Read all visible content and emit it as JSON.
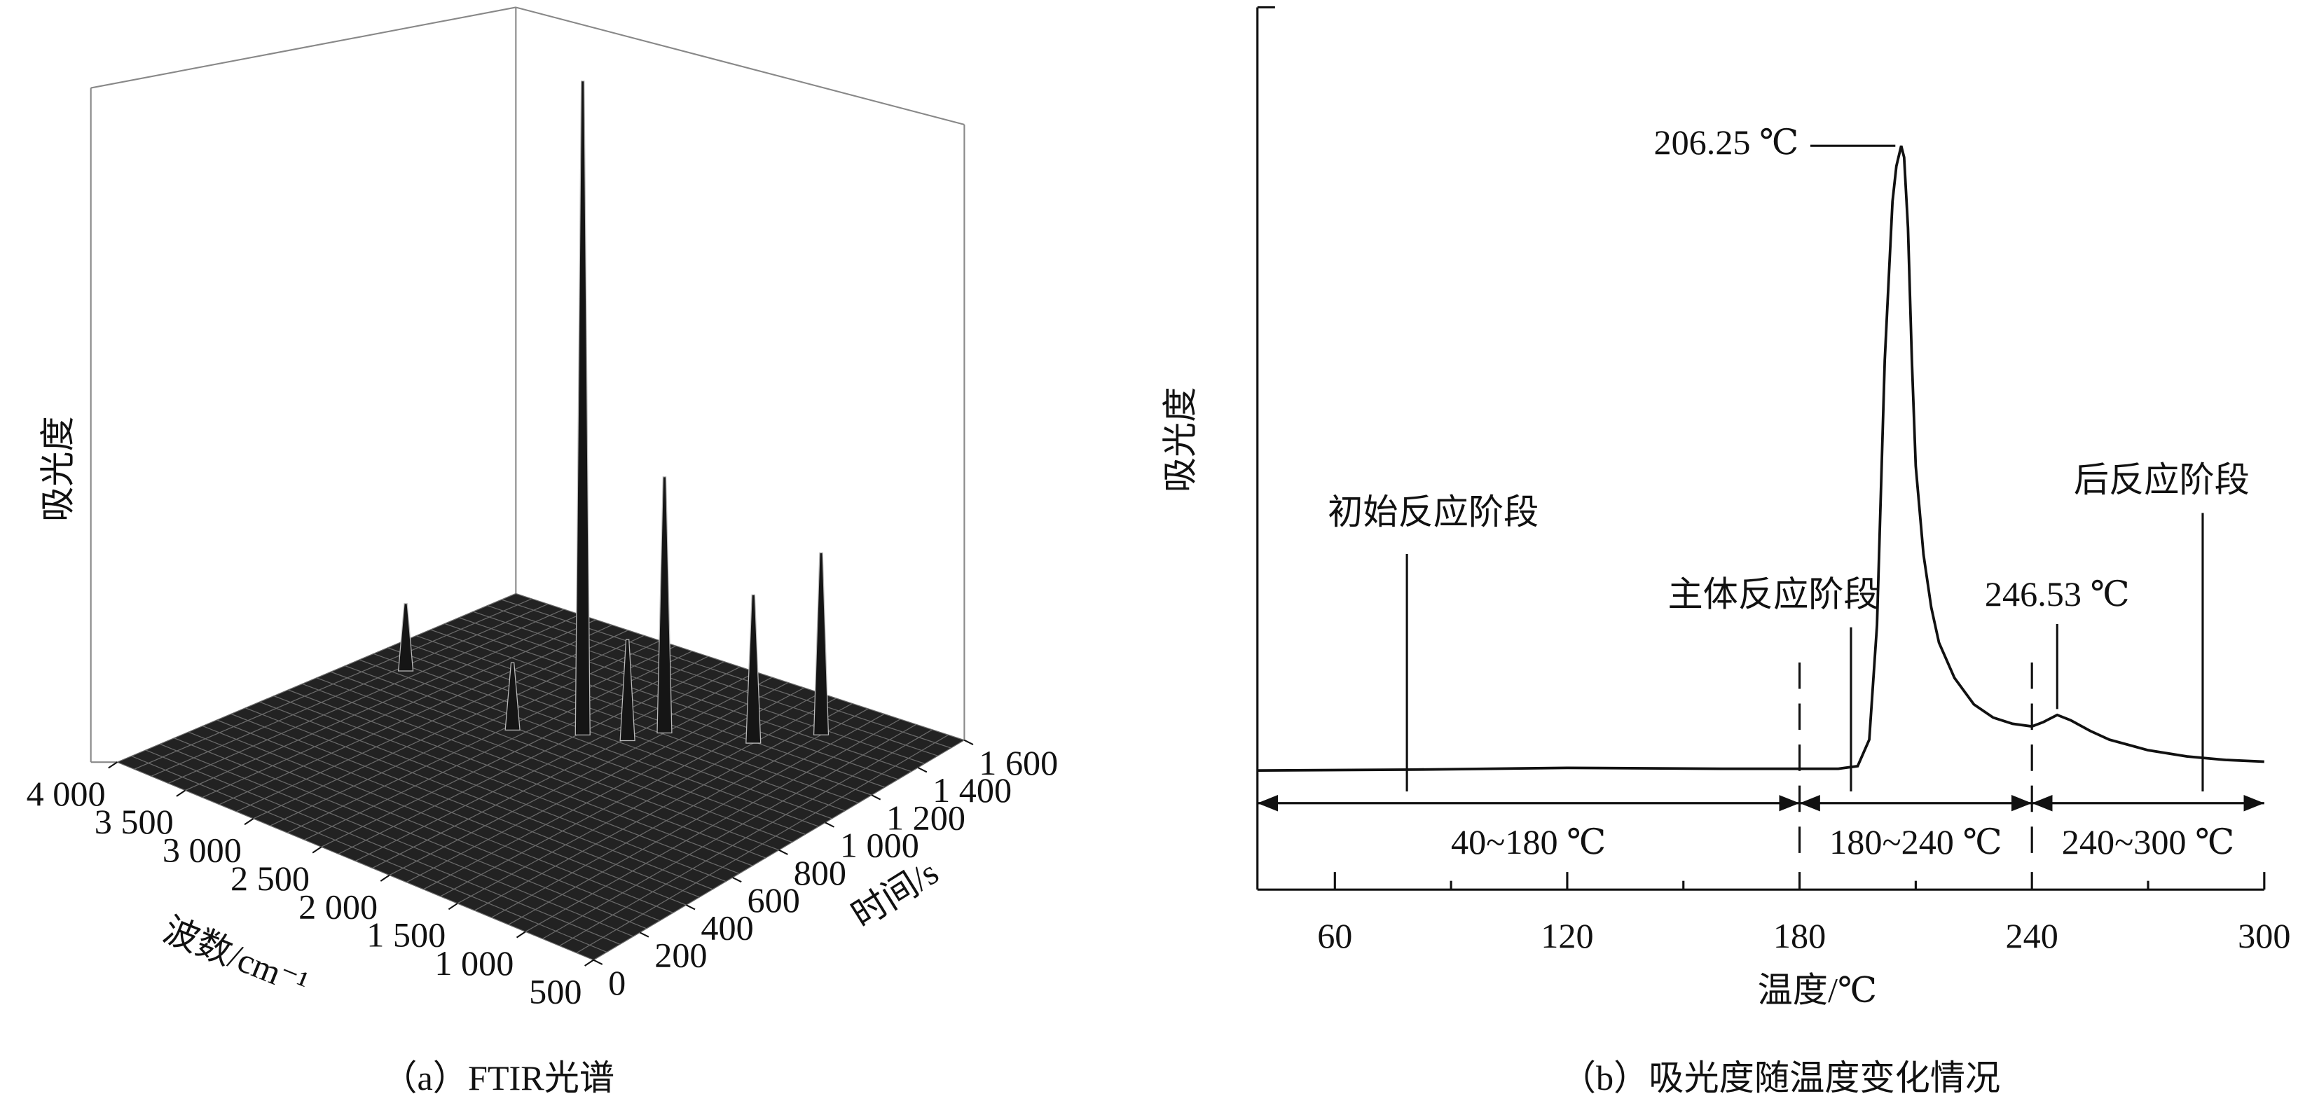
{
  "chart_data": [
    {
      "type": "surface3d",
      "caption": "（a）FTIR光谱",
      "xlabel": "波数/cm⁻¹",
      "ylabel": "时间/s",
      "zlabel": "吸光度",
      "xlim": [
        500,
        4000
      ],
      "xticks": [
        {
          "value": 4000,
          "label": "4 000"
        },
        {
          "value": 3500,
          "label": "3 500"
        },
        {
          "value": 3000,
          "label": "3 000"
        },
        {
          "value": 2500,
          "label": "2 500"
        },
        {
          "value": 2000,
          "label": "2 000"
        },
        {
          "value": 1500,
          "label": "1 500"
        },
        {
          "value": 1000,
          "label": "1 000"
        },
        500
      ],
      "ylim": [
        0,
        1600
      ],
      "yticks": [
        0,
        200,
        400,
        600,
        800,
        {
          "value": 1000,
          "label": "1 000"
        },
        {
          "value": 1200,
          "label": "1 200"
        },
        {
          "value": 1400,
          "label": "1 400"
        },
        {
          "value": 1600,
          "label": "1 600"
        }
      ],
      "zlim": [
        0,
        1
      ],
      "grid": true,
      "color": "#222222",
      "peaks": {
        "wavenumber": [
          2350,
          2000,
          1500,
          1250,
          3700,
          2700,
          2100
        ],
        "time": [
          1000,
          1150,
          1250,
          1400,
          1000,
          900,
          1050
        ],
        "absorbance": [
          0.97,
          0.38,
          0.22,
          0.27,
          0.1,
          0.1,
          0.15
        ]
      }
    },
    {
      "type": "line",
      "caption": "（b）吸光度随温度变化情况",
      "xlabel": "温度/℃",
      "ylabel": "吸光度",
      "color": "#111111",
      "xlim": [
        40,
        300
      ],
      "xticks": [
        60,
        120,
        180,
        240,
        300
      ],
      "xminorticks": [
        90,
        150,
        210,
        270
      ],
      "ylim": [
        0,
        1
      ],
      "x": [
        40,
        80,
        120,
        160,
        190,
        195,
        198,
        200,
        202,
        204,
        205,
        206.25,
        207,
        208,
        209,
        210,
        212,
        214,
        216,
        220,
        225,
        230,
        235,
        240,
        243,
        246.53,
        250,
        255,
        260,
        270,
        280,
        290,
        300
      ],
      "values": [
        0.135,
        0.136,
        0.138,
        0.137,
        0.137,
        0.14,
        0.17,
        0.3,
        0.6,
        0.78,
        0.82,
        0.843,
        0.83,
        0.75,
        0.6,
        0.48,
        0.38,
        0.32,
        0.28,
        0.24,
        0.21,
        0.195,
        0.188,
        0.185,
        0.19,
        0.198,
        0.192,
        0.18,
        0.17,
        0.158,
        0.151,
        0.147,
        0.145
      ],
      "peak_labels": [
        {
          "text": "206.25 ℃",
          "x": 206.25
        },
        {
          "text": "246.53 ℃",
          "x": 246.53
        }
      ],
      "stages": [
        "初始反应阶段",
        "主体反应阶段",
        "后反应阶段"
      ],
      "ranges": [
        {
          "label": "40~180 ℃",
          "from": 40,
          "to": 180
        },
        {
          "label": "180~240 ℃",
          "from": 180,
          "to": 240
        },
        {
          "label": "240~300 ℃",
          "from": 240,
          "to": 300
        }
      ]
    }
  ]
}
